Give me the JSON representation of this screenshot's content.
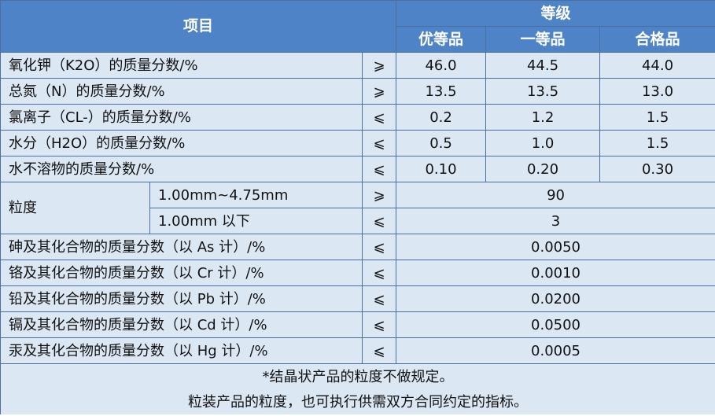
{
  "header": {
    "item": "项目",
    "grade": "等级",
    "grades": [
      "优等品",
      "一等品",
      "合格品"
    ]
  },
  "rows_a": [
    {
      "label": "氧化钾（K2O）的质量分数/%",
      "sign": "⩾",
      "values": [
        "46.0",
        "44.5",
        "44.0"
      ]
    },
    {
      "label": "总氮（N）的质量分数/%",
      "sign": "⩾",
      "values": [
        "13.5",
        "13.5",
        "13.0"
      ]
    },
    {
      "label": "氯离子（CL-）的质量分数/%",
      "sign": "⩽",
      "values": [
        "0.2",
        "1.2",
        "1.5"
      ]
    },
    {
      "label": "水分（H2O）的质量分数/%",
      "sign": "⩽",
      "values": [
        "0.5",
        "1.0",
        "1.5"
      ]
    },
    {
      "label": "水不溶物的质量分数/%",
      "sign": "⩽",
      "values": [
        "0.10",
        "0.20",
        "0.30"
      ]
    }
  ],
  "granularity": {
    "label": "粒度",
    "rows": [
      {
        "range": "1.00mm~4.75mm",
        "sign": "⩾",
        "value": "90"
      },
      {
        "range": "1.00mm 以下",
        "sign": "⩽",
        "value": "3"
      }
    ]
  },
  "rows_b": [
    {
      "label": "砷及其化合物的质量分数（以 As 计）/%",
      "sign": "⩽",
      "value": "0.0050"
    },
    {
      "label": "铬及其化合物的质量分数（以 Cr 计）/%",
      "sign": "⩽",
      "value": "0.0010"
    },
    {
      "label": "铅及其化合物的质量分数（以 Pb 计）/%",
      "sign": "⩽",
      "value": "0.0200"
    },
    {
      "label": "镉及其化合物的质量分数（以 Cd 计）/%",
      "sign": "⩽",
      "value": "0.0500"
    },
    {
      "label": "汞及其化合物的质量分数（以 Hg 计）/%",
      "sign": "⩽",
      "value": "0.0005"
    }
  ],
  "notes": [
    "*结晶状产品的粒度不做规定。",
    "粒装产品的粒度，也可执行供需双方合同约定的指标。"
  ]
}
